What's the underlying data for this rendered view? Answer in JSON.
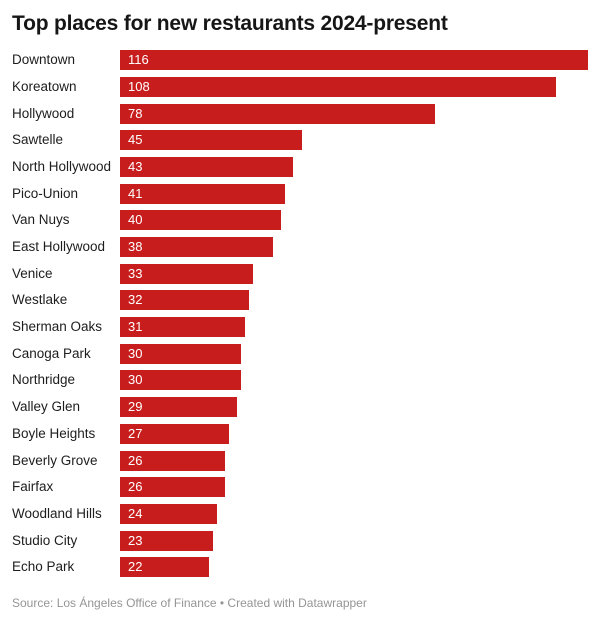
{
  "title": "Top places for new restaurants 2024-present",
  "footer": {
    "text": "Source: Los Ángeles Office of Finance • Created with Datawrapper"
  },
  "colors": {
    "bar": "#c71e1d",
    "value_label": "#ffffff",
    "title_text": "#161616",
    "category_label": "#1d1d1d",
    "footer_text": "#959595"
  },
  "chart_data": {
    "type": "bar",
    "orientation": "horizontal",
    "title": "Top places for new restaurants 2024-present",
    "xlabel": "",
    "ylabel": "",
    "xlim": [
      0,
      116
    ],
    "grid": false,
    "legend": false,
    "value_labels_inside_bars": true,
    "categories": [
      "Downtown",
      "Koreatown",
      "Hollywood",
      "Sawtelle",
      "North Hollywood",
      "Pico-Union",
      "Van Nuys",
      "East Hollywood",
      "Venice",
      "Westlake",
      "Sherman Oaks",
      "Canoga Park",
      "Northridge",
      "Valley Glen",
      "Boyle Heights",
      "Beverly Grove",
      "Fairfax",
      "Woodland Hills",
      "Studio City",
      "Echo Park"
    ],
    "values": [
      116,
      108,
      78,
      45,
      43,
      41,
      40,
      38,
      33,
      32,
      31,
      30,
      30,
      29,
      27,
      26,
      26,
      24,
      23,
      22
    ]
  }
}
